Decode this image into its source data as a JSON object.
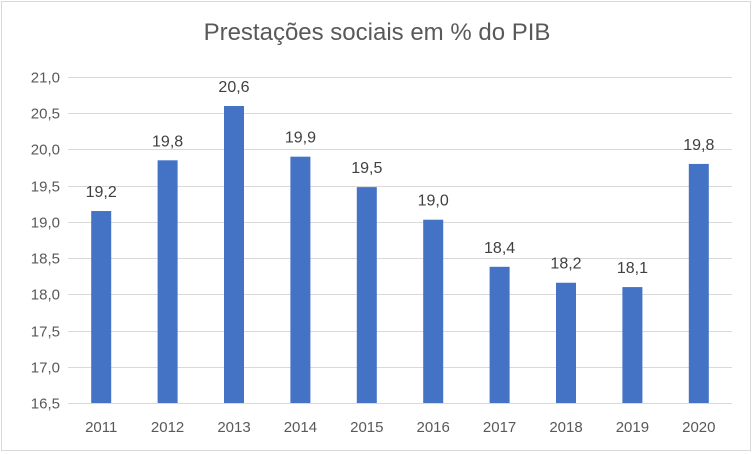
{
  "chart_data": {
    "type": "bar",
    "title": "Prestações sociais em % do PIB",
    "xlabel": "",
    "ylabel": "",
    "categories": [
      "2011",
      "2012",
      "2013",
      "2014",
      "2015",
      "2016",
      "2017",
      "2018",
      "2019",
      "2020"
    ],
    "values": [
      19.15,
      19.85,
      20.6,
      19.9,
      19.48,
      19.03,
      18.38,
      18.16,
      18.1,
      19.8
    ],
    "data_labels": [
      "19,2",
      "19,8",
      "20,6",
      "19,9",
      "19,5",
      "19,0",
      "18,4",
      "18,2",
      "18,1",
      "19,8"
    ],
    "ylim": [
      16.5,
      21.0
    ],
    "yticks": [
      16.5,
      17.0,
      17.5,
      18.0,
      18.5,
      19.0,
      19.5,
      20.0,
      20.5,
      21.0
    ],
    "ytick_labels": [
      "16,5",
      "17,0",
      "17,5",
      "18,0",
      "18,5",
      "19,0",
      "19,5",
      "20,0",
      "20,5",
      "21,0"
    ],
    "grid": true,
    "legend": "none",
    "colors": {
      "bar": "#4472c4",
      "grid": "#d9d9d9",
      "text": "#595959"
    }
  }
}
